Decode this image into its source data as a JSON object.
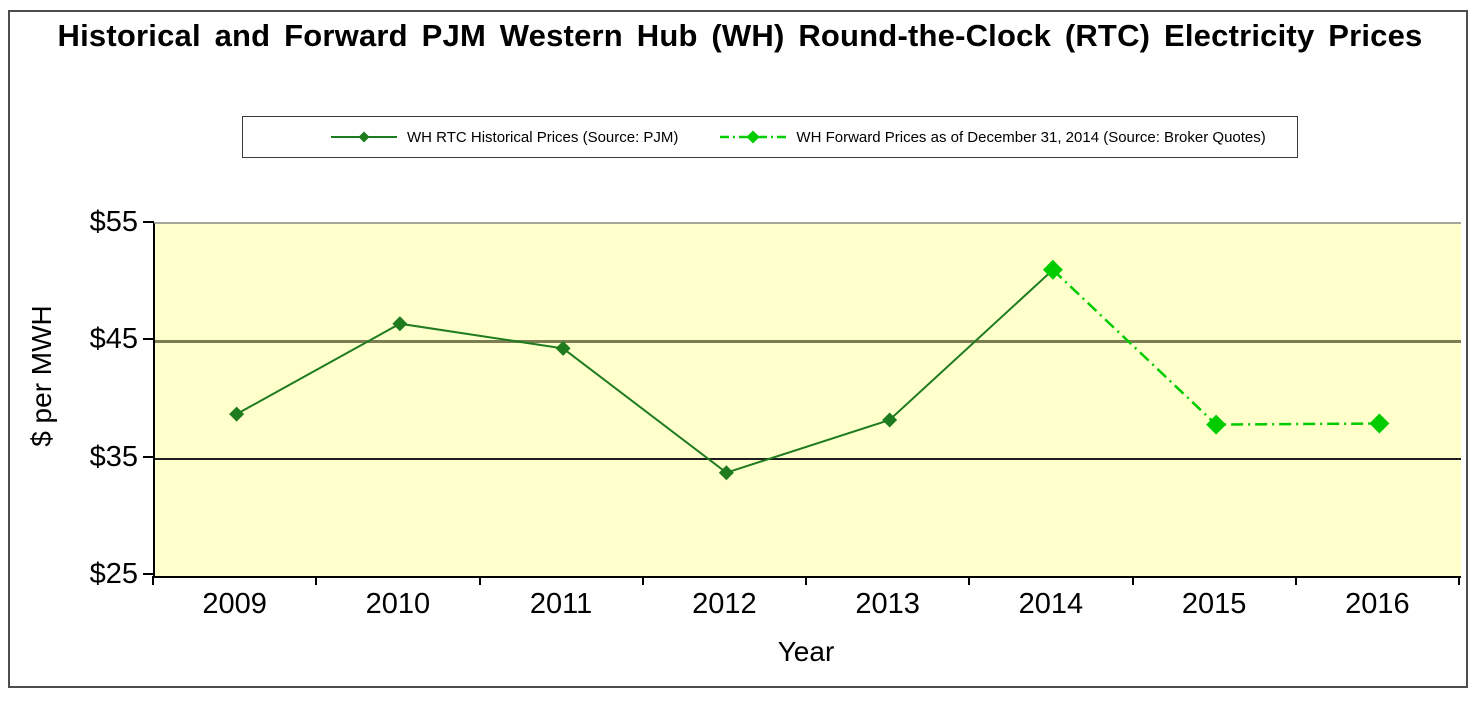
{
  "title": "Historical and Forward PJM Western Hub (WH) Round-the-Clock (RTC) Electricity Prices",
  "legend": {
    "historical_label": "WH RTC Historical Prices (Source: PJM)",
    "forward_label": "WH Forward Prices as of December 31, 2014 (Source: Broker Quotes)"
  },
  "axes": {
    "y_title": "$ per MWH",
    "x_title": "Year",
    "y_tick_labels": [
      "$55",
      "$45",
      "$35",
      "$25"
    ],
    "y_tick_values": [
      55,
      45,
      35,
      25
    ],
    "x_tick_labels": [
      "2009",
      "2010",
      "2011",
      "2012",
      "2013",
      "2014",
      "2015",
      "2016"
    ]
  },
  "colors": {
    "historical": "#1E7B1E",
    "forward": "#00CC00",
    "plot_bg": "#FFFFCC",
    "grid_45": "#7D7D54",
    "grid_35": "#1F1F1F",
    "axis": "#000000"
  },
  "chart_data": {
    "type": "line",
    "title": "Historical and Forward PJM Western Hub (WH) Round-the-Clock (RTC) Electricity Prices",
    "xlabel": "Year",
    "ylabel": "$ per MWH",
    "ylim": [
      25,
      55
    ],
    "y_ticks": [
      25,
      35,
      45,
      55
    ],
    "grid": "horizontal-only",
    "legend_position": "top",
    "plot_background": "#FFFFCC",
    "categories": [
      2009,
      2010,
      2011,
      2012,
      2013,
      2014,
      2015,
      2016
    ],
    "series": [
      {
        "name": "WH RTC Historical Prices (Source: PJM)",
        "color": "#1E7B1E",
        "style": "solid",
        "marker": "diamond",
        "values": [
          38.8,
          46.5,
          44.4,
          33.8,
          38.3,
          51.1,
          null,
          null
        ]
      },
      {
        "name": "WH Forward Prices as of December 31, 2014 (Source: Broker Quotes)",
        "color": "#00CC00",
        "style": "dash-dot",
        "marker": "diamond",
        "values": [
          null,
          null,
          null,
          null,
          null,
          51.1,
          37.9,
          38.0
        ]
      }
    ]
  }
}
